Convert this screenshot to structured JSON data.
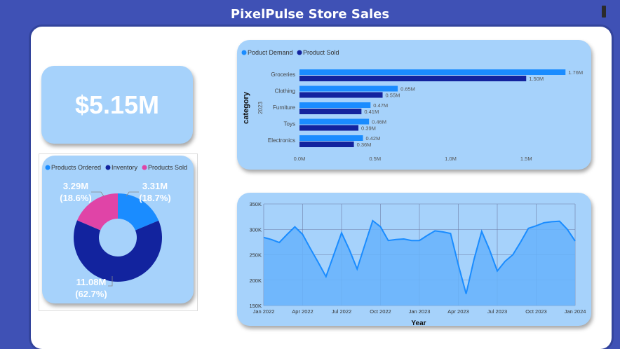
{
  "header": {
    "title": "PixelPulse Store Sales"
  },
  "kpi": {
    "total_sales": "$5.15M"
  },
  "donut": {
    "legend": [
      {
        "label": "Products Ordered",
        "color": "#1a8cff"
      },
      {
        "label": "Inventory",
        "color": "#12239e"
      },
      {
        "label": "Products Sold",
        "color": "#e044a7"
      }
    ],
    "slices": [
      {
        "name": "Products Ordered",
        "value_label": "3.31M",
        "pct_label": "(18.7%)",
        "value": 3.31,
        "color": "#1a8cff"
      },
      {
        "name": "Inventory",
        "value_label": "11.08M",
        "pct_label": "(62.7%)",
        "value": 11.08,
        "color": "#12239e"
      },
      {
        "name": "Products Sold",
        "value_label": "3.29M",
        "pct_label": "(18.6%)",
        "value": 3.29,
        "color": "#e044a7"
      }
    ]
  },
  "chart_data": [
    {
      "type": "bar",
      "orientation": "horizontal",
      "legend": [
        {
          "label": "Poduct Demand",
          "color": "#1a8cff"
        },
        {
          "label": "Product Sold",
          "color": "#12239e"
        }
      ],
      "ylabel": "category",
      "group_label": "2023",
      "categories": [
        "Groceries",
        "Clothing",
        "Furniture",
        "Toys",
        "Electronics"
      ],
      "series": [
        {
          "name": "Poduct Demand",
          "color": "#1a8cff",
          "values": [
            1.76,
            0.65,
            0.47,
            0.46,
            0.42
          ],
          "labels": [
            "1.76M",
            "0.65M",
            "0.47M",
            "0.46M",
            "0.42M"
          ]
        },
        {
          "name": "Product Sold",
          "color": "#12239e",
          "values": [
            1.5,
            0.55,
            0.41,
            0.39,
            0.36
          ],
          "labels": [
            "1.50M",
            "0.55M",
            "0.41M",
            "0.39M",
            "0.36M"
          ]
        }
      ],
      "xlim": [
        0,
        1.8
      ],
      "xticks": [
        0,
        0.5,
        1,
        1.5
      ],
      "xtick_labels": [
        "0.0M",
        "0.5M",
        "1.0M",
        "1.5M"
      ]
    },
    {
      "type": "area",
      "xlabel": "Year",
      "ylim": [
        150,
        350
      ],
      "yticks": [
        150,
        200,
        250,
        300,
        350
      ],
      "ytick_labels": [
        "150K",
        "200K",
        "250K",
        "300K",
        "350K"
      ],
      "xtick_labels": [
        "Jan 2022",
        "Apr 2022",
        "Jul 2022",
        "Oct 2022",
        "Jan 2023",
        "Apr 2023",
        "Jul 2023",
        "Oct 2023",
        "Jan 2024"
      ],
      "xtick_months": [
        0,
        3,
        6,
        9,
        12,
        15,
        18,
        21,
        24
      ],
      "grid": true,
      "color": "#1a8cff",
      "fill": "#66b3fb",
      "months": [
        0,
        0.6,
        1.2,
        1.8,
        2.4,
        3,
        3.6,
        4.2,
        4.8,
        5.4,
        6,
        6.6,
        7.2,
        7.8,
        8.4,
        9,
        9.6,
        10.2,
        10.8,
        11.4,
        12,
        12.6,
        13.2,
        13.8,
        14.4,
        15,
        15.6,
        16.2,
        16.8,
        17.4,
        18,
        18.6,
        19.2,
        19.8,
        20.4,
        21,
        21.6,
        22.2,
        22.8,
        23.4,
        24
      ],
      "values": [
        284,
        280,
        274,
        290,
        305,
        290,
        262,
        235,
        207,
        250,
        293,
        260,
        222,
        270,
        317,
        305,
        278,
        280,
        281,
        278,
        278,
        288,
        297,
        295,
        292,
        230,
        173,
        240,
        296,
        260,
        218,
        237,
        250,
        275,
        302,
        307,
        313,
        315,
        316,
        300,
        277
      ]
    }
  ]
}
